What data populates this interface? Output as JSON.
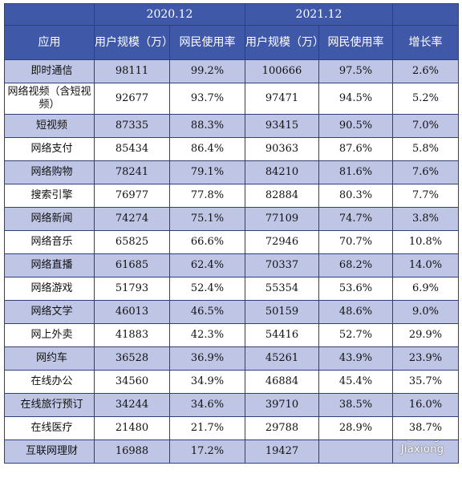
{
  "table": {
    "years": [
      "2020.12",
      "2021.12"
    ],
    "headers": {
      "app": "应用",
      "users_2020": "用户规模（万）",
      "rate_2020": "网民使用率",
      "users_2021": "用户规模（万）",
      "rate_2021": "网民使用率",
      "growth": "增长率"
    },
    "rows": [
      {
        "name": "即时通信",
        "u2020": "98111",
        "r2020": "99.2%",
        "u2021": "100666",
        "r2021": "97.5%",
        "growth": "2.6%"
      },
      {
        "name": "网络视频（含短视频）",
        "u2020": "92677",
        "r2020": "93.7%",
        "u2021": "97471",
        "r2021": "94.5%",
        "growth": "5.2%"
      },
      {
        "name": "短视频",
        "u2020": "87335",
        "r2020": "88.3%",
        "u2021": "93415",
        "r2021": "90.5%",
        "growth": "7.0%"
      },
      {
        "name": "网络支付",
        "u2020": "85434",
        "r2020": "86.4%",
        "u2021": "90363",
        "r2021": "87.6%",
        "growth": "5.8%"
      },
      {
        "name": "网络购物",
        "u2020": "78241",
        "r2020": "79.1%",
        "u2021": "84210",
        "r2021": "81.6%",
        "growth": "7.6%"
      },
      {
        "name": "搜索引擎",
        "u2020": "76977",
        "r2020": "77.8%",
        "u2021": "82884",
        "r2021": "80.3%",
        "growth": "7.7%"
      },
      {
        "name": "网络新闻",
        "u2020": "74274",
        "r2020": "75.1%",
        "u2021": "77109",
        "r2021": "74.7%",
        "growth": "3.8%"
      },
      {
        "name": "网络音乐",
        "u2020": "65825",
        "r2020": "66.6%",
        "u2021": "72946",
        "r2021": "70.7%",
        "growth": "10.8%"
      },
      {
        "name": "网络直播",
        "u2020": "61685",
        "r2020": "62.4%",
        "u2021": "70337",
        "r2021": "68.2%",
        "growth": "14.0%"
      },
      {
        "name": "网络游戏",
        "u2020": "51793",
        "r2020": "52.4%",
        "u2021": "55354",
        "r2021": "53.6%",
        "growth": "6.9%"
      },
      {
        "name": "网络文学",
        "u2020": "46013",
        "r2020": "46.5%",
        "u2021": "50159",
        "r2021": "48.6%",
        "growth": "9.0%"
      },
      {
        "name": "网上外卖",
        "u2020": "41883",
        "r2020": "42.3%",
        "u2021": "54416",
        "r2021": "52.7%",
        "growth": "29.9%"
      },
      {
        "name": "网约车",
        "u2020": "36528",
        "r2020": "36.9%",
        "u2021": "45261",
        "r2021": "43.9%",
        "growth": "23.9%"
      },
      {
        "name": "在线办公",
        "u2020": "34560",
        "r2020": "34.9%",
        "u2021": "46884",
        "r2021": "45.4%",
        "growth": "35.7%"
      },
      {
        "name": "在线旅行预订",
        "u2020": "34244",
        "r2020": "34.6%",
        "u2021": "39710",
        "r2021": "38.5%",
        "growth": "16.0%"
      },
      {
        "name": "在线医疗",
        "u2020": "21480",
        "r2020": "21.7%",
        "u2021": "29788",
        "r2021": "28.9%",
        "growth": "38.7%"
      },
      {
        "name": "互联网理财",
        "u2020": "16988",
        "r2020": "17.2%",
        "u2021": "19427",
        "r2021": "",
        "growth": ""
      }
    ]
  },
  "watermark": "CSDN @Ding Jiaxiong"
}
